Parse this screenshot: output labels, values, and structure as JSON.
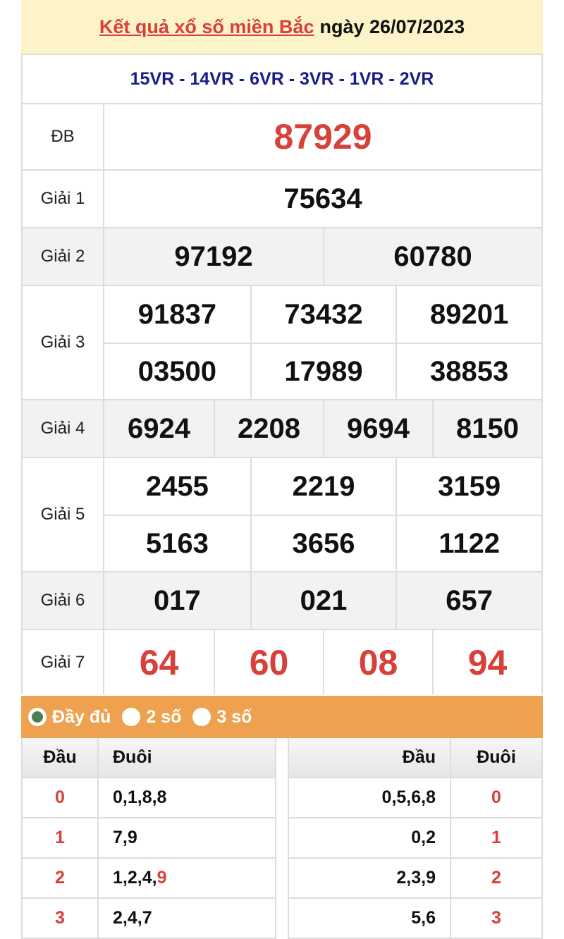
{
  "header": {
    "title_link": "Kết quả xổ số miền Bắc",
    "title_rest": "ngày 26/07/2023"
  },
  "codes": "15VR - 14VR - 6VR - 3VR - 1VR - 2VR",
  "prizes": [
    {
      "label": "ĐB",
      "values": [
        "87929"
      ],
      "cols": 1,
      "red": true
    },
    {
      "label": "Giải 1",
      "values": [
        "75634"
      ],
      "cols": 1
    },
    {
      "label": "Giải 2",
      "values": [
        "97192",
        "60780"
      ],
      "cols": 2,
      "gray": true
    },
    {
      "label": "Giải 3",
      "values": [
        "91837",
        "73432",
        "89201",
        "03500",
        "17989",
        "38853"
      ],
      "cols": 3
    },
    {
      "label": "Giải 4",
      "values": [
        "6924",
        "2208",
        "9694",
        "8150"
      ],
      "cols": 4,
      "gray": true
    },
    {
      "label": "Giải 5",
      "values": [
        "2455",
        "2219",
        "3159",
        "5163",
        "3656",
        "1122"
      ],
      "cols": 3
    },
    {
      "label": "Giải 6",
      "values": [
        "017",
        "021",
        "657"
      ],
      "cols": 3,
      "gray": true
    },
    {
      "label": "Giải 7",
      "values": [
        "64",
        "60",
        "08",
        "94"
      ],
      "cols": 4,
      "red": true
    }
  ],
  "options": [
    {
      "label": "Đầy đủ",
      "selected": true
    },
    {
      "label": "2 số",
      "selected": false
    },
    {
      "label": "3 số",
      "selected": false
    }
  ],
  "loto_left": {
    "headers": [
      "Đầu",
      "Đuôi"
    ],
    "rows": [
      {
        "head": "0",
        "tail": "0,1,8,8"
      },
      {
        "head": "1",
        "tail": "7,9"
      },
      {
        "head": "2",
        "tail": "1,2,4,",
        "tail_red": "9"
      },
      {
        "head": "3",
        "tail": "2,4,7"
      }
    ]
  },
  "loto_right": {
    "headers": [
      "Đầu",
      "Đuôi"
    ],
    "rows": [
      {
        "head": "0,5,6,8",
        "tail": "0"
      },
      {
        "head": "0,2",
        "tail": "1"
      },
      {
        "head": "2,3,9",
        "tail": "2"
      },
      {
        "head": "5,6",
        "tail": "3"
      }
    ]
  },
  "colors": {
    "accent_red": "#d8403a",
    "codes_blue": "#1a1a8c",
    "options_orange": "#eea24f",
    "header_yellow": "#fcf4c8"
  }
}
